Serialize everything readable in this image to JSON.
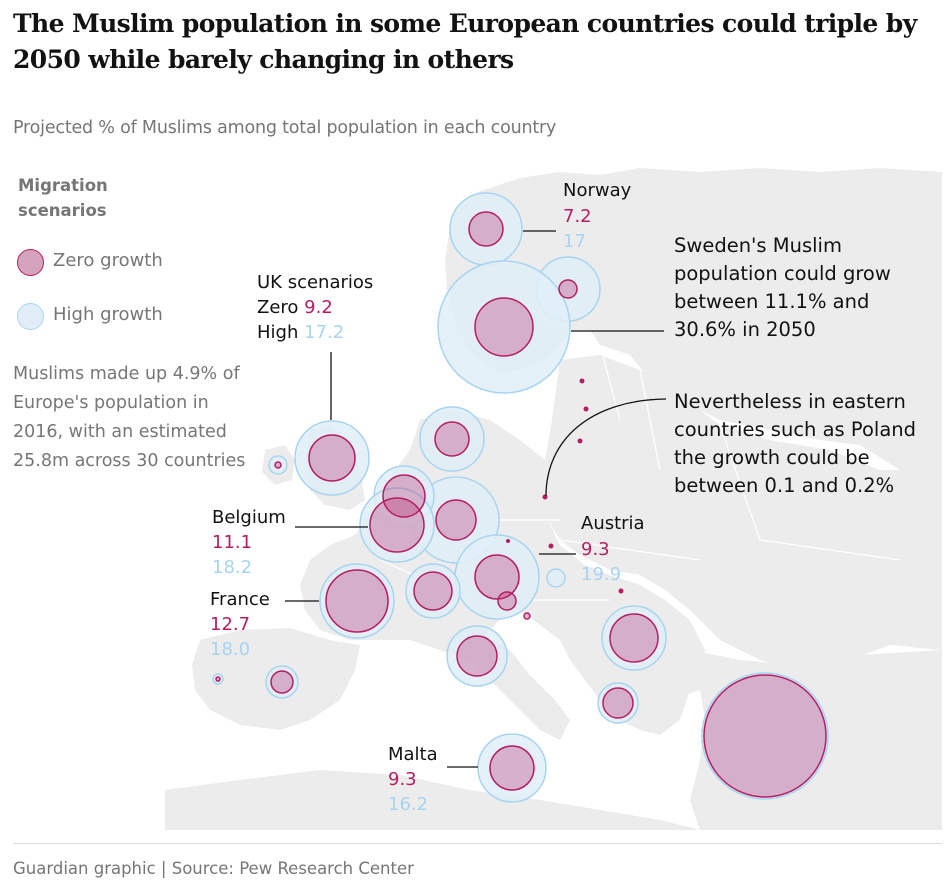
{
  "title": "The Muslim population in some European countries could triple by 2050 while barely changing in others",
  "subtitle": "Projected % of Muslims among total population in each country",
  "legend": {
    "heading_line1": "Migration",
    "heading_line2": "scenarios",
    "zero_label": "Zero growth",
    "high_label": "High growth"
  },
  "note": "Muslims made up 4.9% of Europe's population in 2016, with an estimated 25.8m across 30 countries",
  "labels": {
    "norway": {
      "name": "Norway",
      "zero": "7.2",
      "high": "17"
    },
    "uk": {
      "name": "UK scenarios",
      "zero_prefix": "Zero",
      "zero": "9.2",
      "high_prefix": "High",
      "high": "17.2"
    },
    "belgium": {
      "name": "Belgium",
      "zero": "11.1",
      "high": "18.2"
    },
    "france": {
      "name": "France",
      "zero": "12.7",
      "high": "18.0"
    },
    "austria": {
      "name": "Austria",
      "zero": "9.3",
      "high": "19.9"
    },
    "malta": {
      "name": "Malta",
      "zero": "9.3",
      "high": "16.2"
    }
  },
  "callouts": {
    "sweden": {
      "line1": "Sweden's Muslim",
      "line2": "population could grow",
      "line3": "between 11.1% and",
      "line4": "30.6% in 2050"
    },
    "poland": {
      "line1": "Nevertheless in eastern",
      "line2": "countries such as Poland",
      "line3": "the growth could be",
      "line4": "between 0.1 and 0.2%"
    }
  },
  "source": "Guardian graphic | Source: Pew Research Center",
  "colors": {
    "zero_fill": "#d4a4bd",
    "zero_stroke": "#b51d63",
    "high_fill": "#e1eef8",
    "high_stroke": "#a8d4f0",
    "land": "#ececec"
  }
}
